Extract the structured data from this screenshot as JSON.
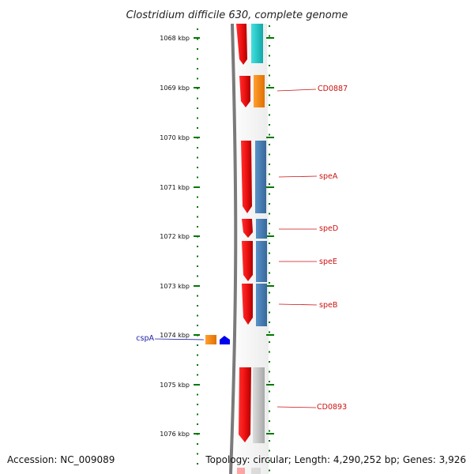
{
  "header": {
    "title": "Clostridium difficile 630, complete genome"
  },
  "axis": {
    "ticks": [
      "1068 kbp",
      "1069 kbp",
      "1070 kbp",
      "1071 kbp",
      "1072 kbp",
      "1073 kbp",
      "1074 kbp",
      "1075 kbp",
      "1076 kbp"
    ]
  },
  "genes": {
    "right_labels": [
      "CD0887",
      "speA",
      "speD",
      "speE",
      "speB",
      "CD0893"
    ],
    "left_labels": [
      "cspA"
    ]
  },
  "footer": {
    "accession": "Accession: NC_009089",
    "topology": "Topology: circular; Length: 4,290,252 bp; Genes: 3,926"
  },
  "colors": {
    "cds": "#ee1111",
    "cog_teal": "#22cccc",
    "cog_orange": "#ff8c00",
    "cog_steelblue": "#4a7fb5",
    "cog_grey": "#bbbbbb",
    "reverse_blue": "#0000ee",
    "tick_green": "#007700",
    "backbone": "#777777"
  }
}
